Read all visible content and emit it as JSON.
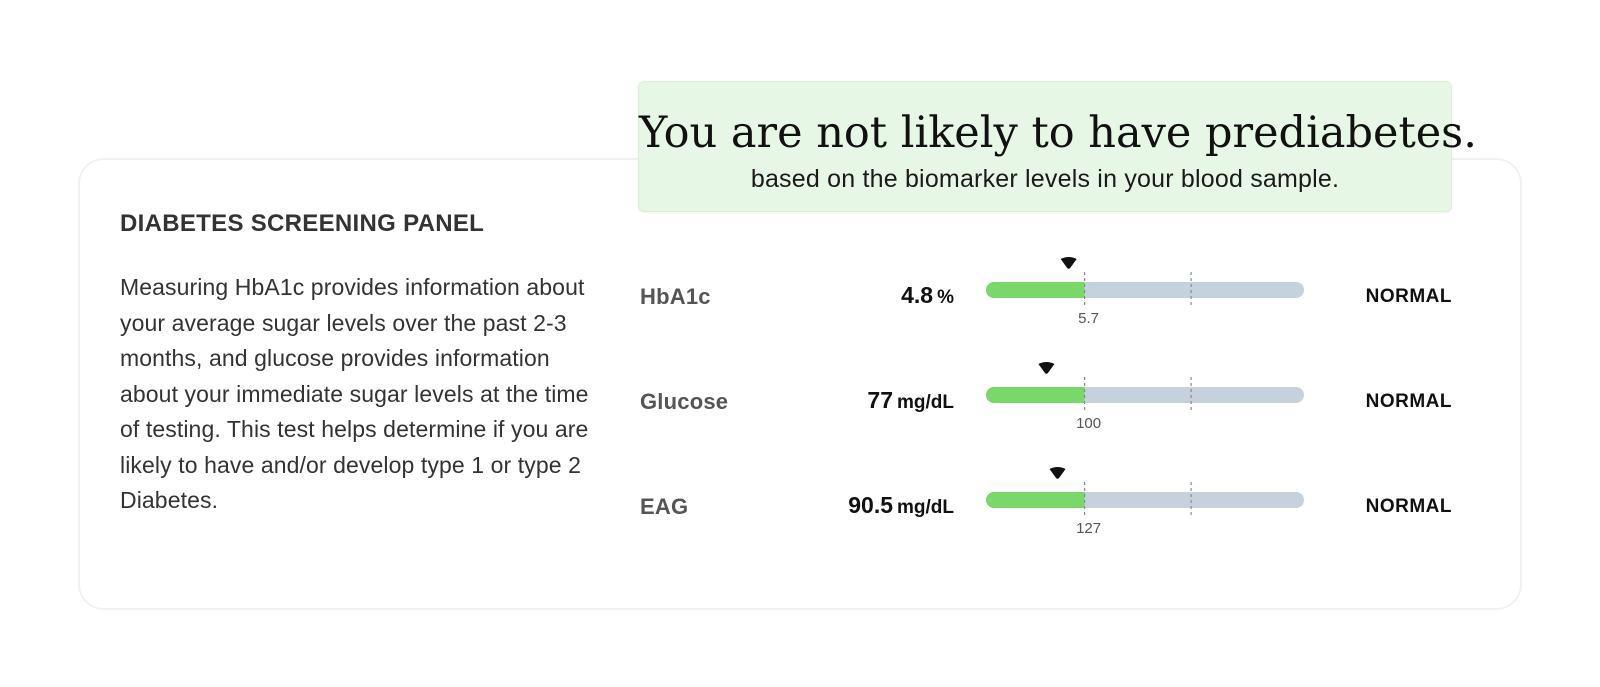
{
  "banner": {
    "title": "You are not likely to have prediabetes.",
    "subtitle": "based on the biomarker levels in your blood sample."
  },
  "panel": {
    "title": "DIABETES SCREENING PANEL",
    "description": "Measuring HbA1c provides information about your average sugar levels over the past 2-3 months, and glucose provides information about your immediate sugar levels at the time of testing. This test helps determine if you are likely to have and/or develop type 1 or type 2 Diabetes."
  },
  "colors": {
    "normal_fill": "#7ad86a",
    "track": "#c5d1dc",
    "marker": "#111111",
    "tick": "#8a8a8a"
  },
  "biomarkers": [
    {
      "name": "HbA1c",
      "value": "4.8",
      "unit": "%",
      "status": "NORMAL",
      "threshold_label": "5.7",
      "marker_fraction": 0.26,
      "fill_fraction": 0.31,
      "second_tick_fraction": 0.645
    },
    {
      "name": "Glucose",
      "value": "77",
      "unit": "mg/dL",
      "status": "NORMAL",
      "threshold_label": "100",
      "marker_fraction": 0.19,
      "fill_fraction": 0.31,
      "second_tick_fraction": 0.645
    },
    {
      "name": "EAG",
      "value": "90.5",
      "unit": "mg/dL",
      "status": "NORMAL",
      "threshold_label": "127",
      "marker_fraction": 0.225,
      "fill_fraction": 0.31,
      "second_tick_fraction": 0.645
    }
  ]
}
